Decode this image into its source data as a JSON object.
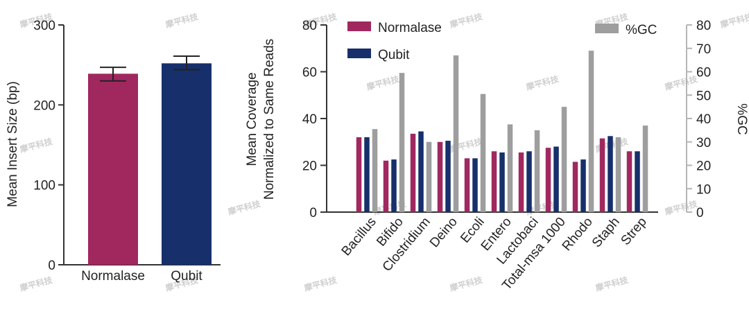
{
  "colors": {
    "normalase": "#a0285f",
    "qubit": "#17306b",
    "gc": "#9e9e9e"
  },
  "watermark": "摩平科技",
  "chart_data": [
    {
      "type": "bar",
      "categories": [
        "Normalase",
        "Qubit"
      ],
      "values": [
        239,
        252
      ],
      "errors": [
        [
          230,
          247
        ],
        [
          244,
          261
        ]
      ],
      "ylabel": "Mean Insert Size (bp)",
      "ylim": [
        0,
        300
      ],
      "yticks": [
        0,
        100,
        200,
        300
      ],
      "grid": false
    },
    {
      "type": "bar",
      "categories": [
        "Bacillus",
        "Bifido",
        "Clostridium",
        "Deino",
        "Ecoli",
        "Entero",
        "Lactobaci",
        "Total-msa 1000",
        "Rhodo",
        "Staph",
        "Strep"
      ],
      "series": [
        {
          "name": "Normalase",
          "axis": "left",
          "values": [
            32,
            22,
            33.5,
            30,
            23,
            26,
            25.5,
            27.5,
            21.5,
            31.5,
            26
          ]
        },
        {
          "name": "Qubit",
          "axis": "left",
          "values": [
            32,
            22.5,
            34.5,
            30.5,
            23,
            25.5,
            26,
            28,
            22.5,
            32.5,
            26
          ]
        },
        {
          "name": "%GC",
          "axis": "right",
          "values": [
            35.5,
            59.5,
            30,
            67,
            50.5,
            37.5,
            35,
            45,
            69,
            32,
            37
          ]
        }
      ],
      "ylabel": "Mean Coverage Normalized to Same Reads",
      "ylabel_lines": [
        "Mean Coverage",
        "Normalized to Same Reads"
      ],
      "ylim": [
        0,
        80
      ],
      "yticks": [
        0,
        20,
        40,
        60,
        80
      ],
      "y2label": "%GC",
      "y2lim": [
        0,
        80
      ],
      "y2ticks": [
        0,
        10,
        20,
        30,
        40,
        50,
        60,
        70,
        80
      ],
      "legend_position": "top",
      "grid": false
    }
  ]
}
